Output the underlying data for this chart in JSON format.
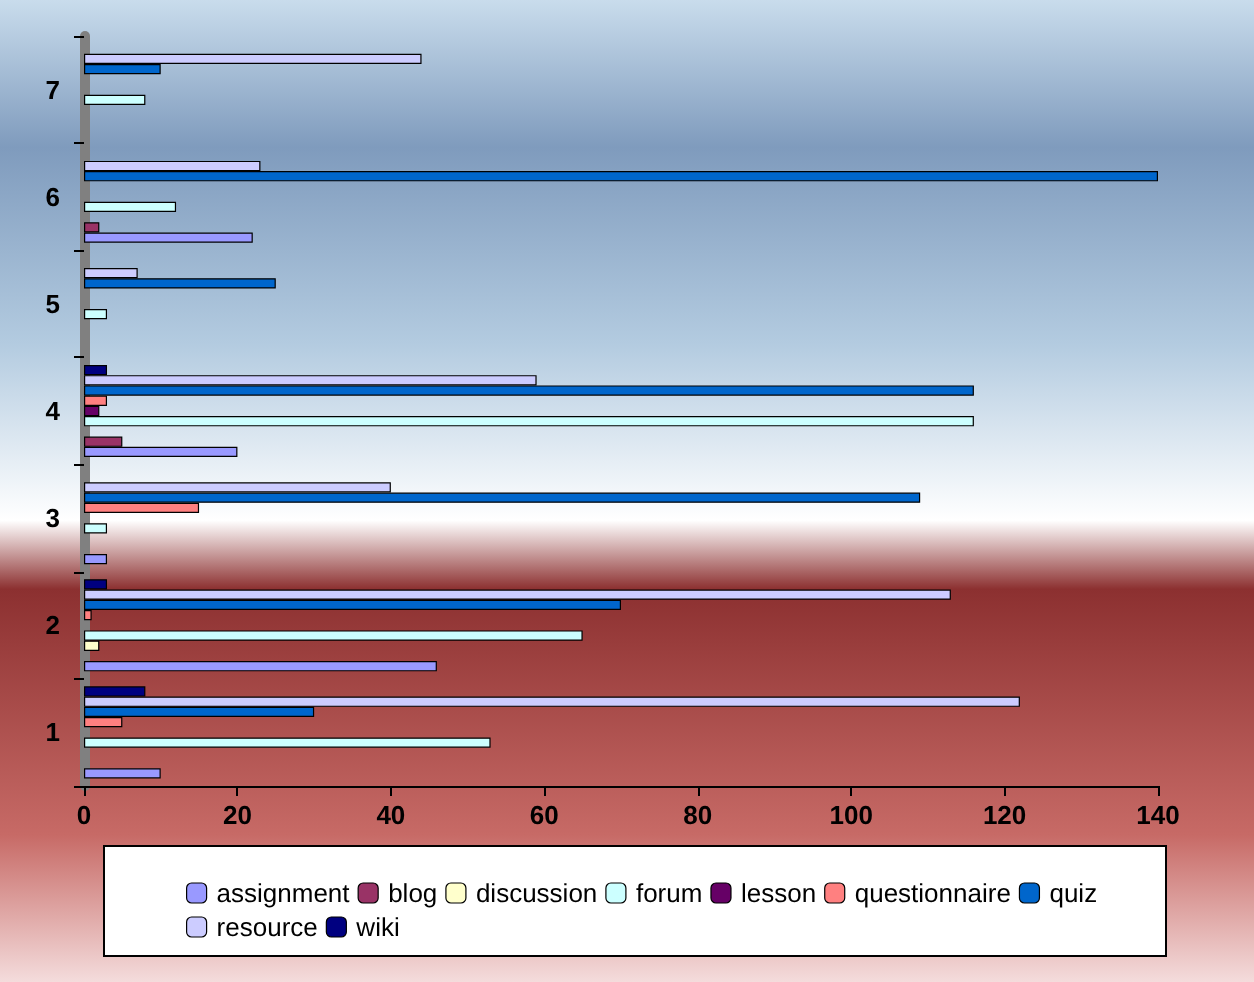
{
  "chart_data": {
    "type": "bar",
    "orientation": "horizontal",
    "categories": [
      "7",
      "6",
      "5",
      "4",
      "3",
      "2",
      "1"
    ],
    "series": [
      {
        "name": "assignment",
        "color": "#9999ff",
        "values": [
          null,
          22,
          null,
          20,
          3,
          46,
          10
        ]
      },
      {
        "name": "blog",
        "color": "#993366",
        "values": [
          null,
          2,
          null,
          5,
          null,
          null,
          null
        ]
      },
      {
        "name": "discussion",
        "color": "#ffffcc",
        "values": [
          null,
          null,
          null,
          null,
          null,
          2,
          null
        ]
      },
      {
        "name": "forum",
        "color": "#ccffff",
        "values": [
          8,
          12,
          3,
          116,
          3,
          65,
          53
        ]
      },
      {
        "name": "lesson",
        "color": "#660066",
        "values": [
          null,
          null,
          null,
          2,
          null,
          null,
          null
        ]
      },
      {
        "name": "questionnaire",
        "color": "#ff8080",
        "values": [
          null,
          null,
          null,
          3,
          15,
          1,
          5
        ]
      },
      {
        "name": "quiz",
        "color": "#0066cc",
        "values": [
          10,
          140,
          25,
          116,
          109,
          70,
          30
        ]
      },
      {
        "name": "resource",
        "color": "#ccccff",
        "values": [
          44,
          23,
          7,
          59,
          40,
          113,
          122
        ]
      },
      {
        "name": "wiki",
        "color": "#000080",
        "values": [
          null,
          null,
          null,
          3,
          null,
          3,
          8
        ]
      }
    ],
    "xlim": [
      0,
      140
    ],
    "xticks": [
      0,
      20,
      40,
      60,
      80,
      100,
      120,
      140
    ],
    "grid": false,
    "legend": "bottom"
  }
}
